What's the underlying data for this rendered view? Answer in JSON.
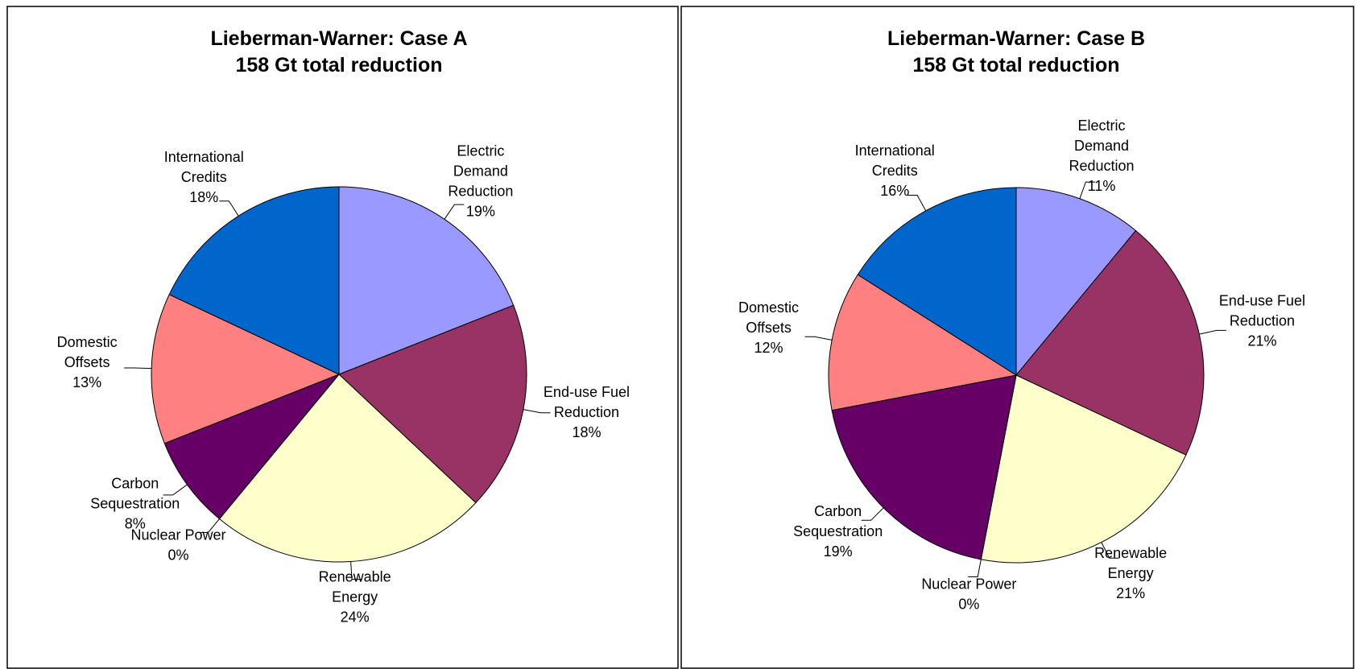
{
  "chart_data": [
    {
      "type": "pie",
      "title": "Lieberman-Warner: Case A",
      "subtitle": "158 Gt total reduction",
      "categories": [
        "Electric\nDemand\nReduction",
        "End-use Fuel\nReduction",
        "Renewable\nEnergy",
        "Nuclear Power",
        "Carbon\nSequestration",
        "Domestic\nOffsets",
        "International\nCredits"
      ],
      "values": [
        19,
        18,
        24,
        0,
        8,
        13,
        18
      ],
      "value_labels": [
        "19%",
        "18%",
        "24%",
        "0%",
        "8%",
        "13%",
        "18%"
      ],
      "colors": [
        "#9999ff",
        "#993366",
        "#ffffcc",
        "#ccffff",
        "#660066",
        "#ff8080",
        "#0066cc"
      ]
    },
    {
      "type": "pie",
      "title": "Lieberman-Warner: Case B",
      "subtitle": "158 Gt total reduction",
      "categories": [
        "Electric\nDemand\nReduction",
        "End-use Fuel\nReduction",
        "Renewable\nEnergy",
        "Nuclear Power",
        "Carbon\nSequestration",
        "Domestic\nOffsets",
        "International\nCredits"
      ],
      "values": [
        11,
        21,
        21,
        0,
        19,
        12,
        16
      ],
      "value_labels": [
        "11%",
        "21%",
        "21%",
        "0%",
        "19%",
        "12%",
        "16%"
      ],
      "colors": [
        "#9999ff",
        "#993366",
        "#ffffcc",
        "#ccffff",
        "#660066",
        "#ff8080",
        "#0066cc"
      ]
    }
  ]
}
